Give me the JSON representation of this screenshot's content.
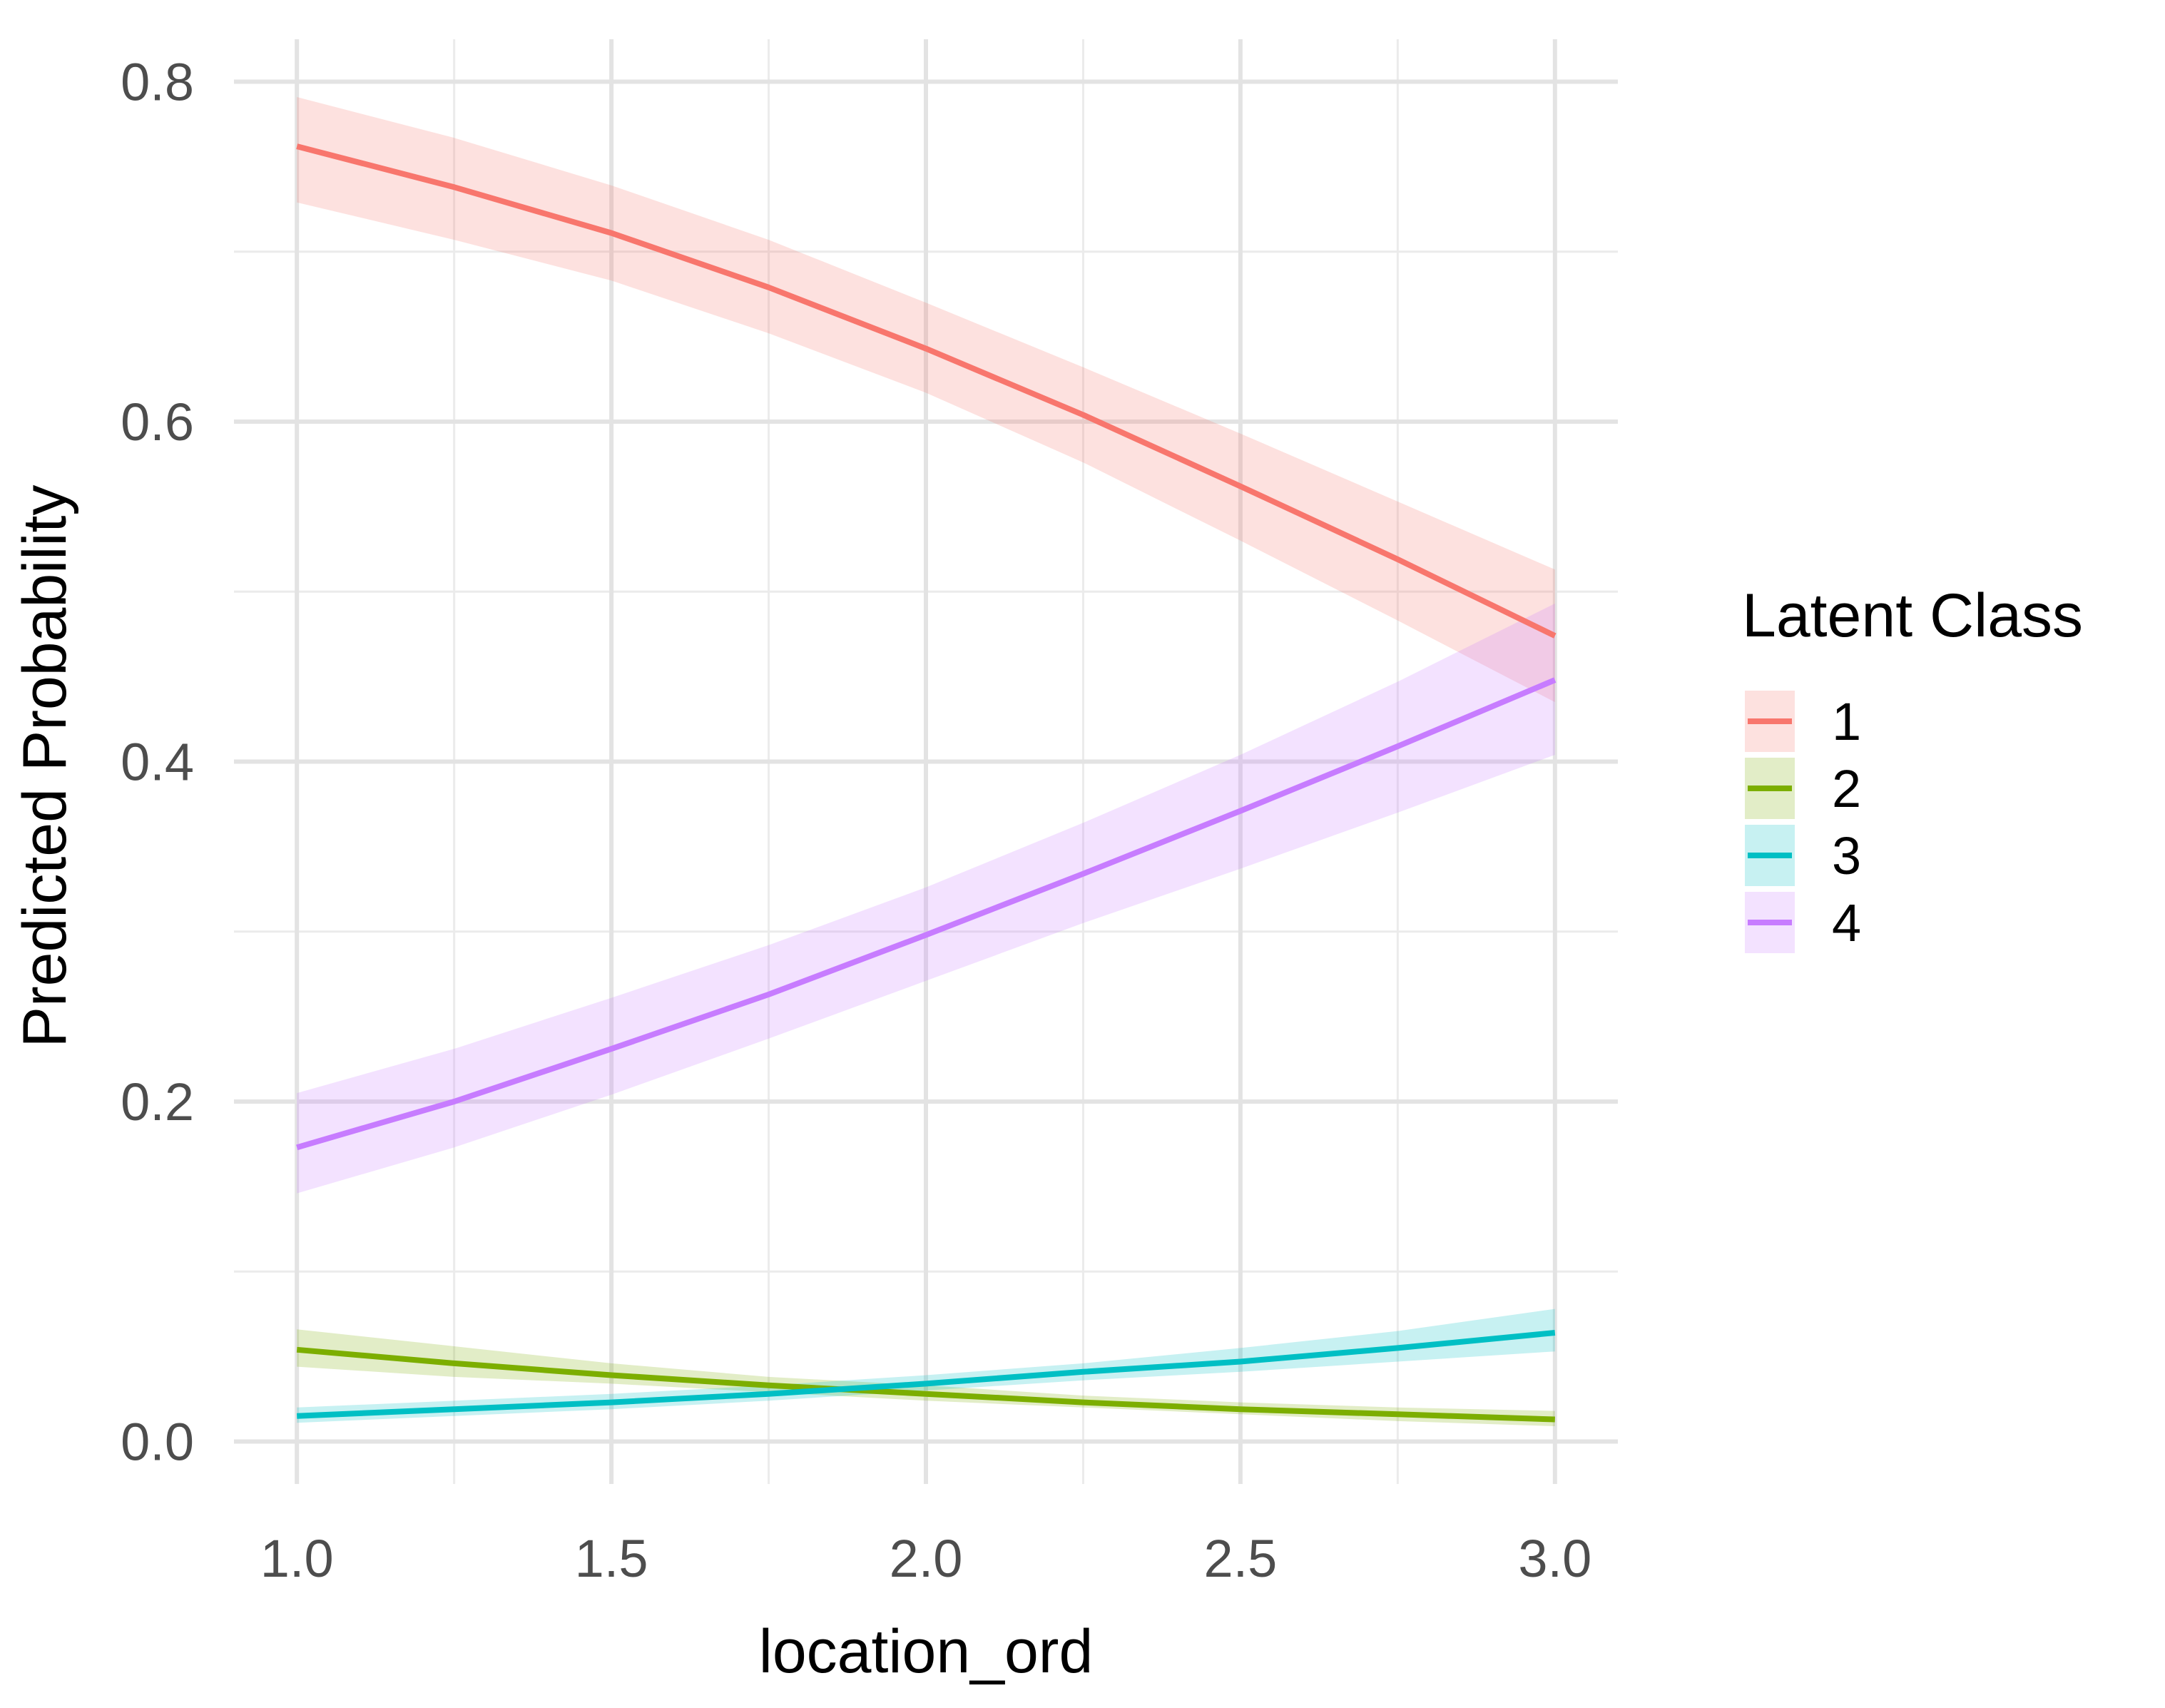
{
  "chart_data": {
    "type": "line",
    "title": "",
    "xlabel": "location_ord",
    "ylabel": "Predicted Probability",
    "xlim": [
      0.9,
      3.1
    ],
    "ylim": [
      -0.025,
      0.825
    ],
    "x_ticks": [
      1.0,
      1.5,
      2.0,
      2.5,
      3.0
    ],
    "x_tick_labels": [
      "1.0",
      "1.5",
      "2.0",
      "2.5",
      "3.0"
    ],
    "y_ticks": [
      0.0,
      0.2,
      0.4,
      0.6,
      0.8
    ],
    "y_tick_labels": [
      "0.0",
      "0.2",
      "0.4",
      "0.6",
      "0.8"
    ],
    "grid": true,
    "legend": {
      "title": "Latent Class",
      "placement": "right",
      "entries": [
        "1",
        "2",
        "3",
        "4"
      ]
    },
    "x": [
      1.0,
      1.25,
      1.5,
      1.75,
      2.0,
      2.25,
      2.5,
      2.75,
      3.0
    ],
    "series": [
      {
        "name": "1",
        "color": "#F8766D",
        "values": [
          0.762,
          0.738,
          0.711,
          0.679,
          0.643,
          0.604,
          0.562,
          0.519,
          0.474
        ],
        "lower": [
          0.729,
          0.707,
          0.683,
          0.652,
          0.617,
          0.576,
          0.53,
          0.483,
          0.435
        ],
        "upper": [
          0.791,
          0.767,
          0.739,
          0.707,
          0.67,
          0.632,
          0.593,
          0.553,
          0.513
        ]
      },
      {
        "name": "2",
        "color": "#7CAE00",
        "values": [
          0.054,
          0.046,
          0.039,
          0.033,
          0.028,
          0.023,
          0.019,
          0.016,
          0.013
        ],
        "lower": [
          0.044,
          0.038,
          0.034,
          0.029,
          0.024,
          0.02,
          0.016,
          0.012,
          0.009
        ],
        "upper": [
          0.066,
          0.056,
          0.046,
          0.038,
          0.033,
          0.027,
          0.023,
          0.02,
          0.018
        ]
      },
      {
        "name": "3",
        "color": "#00BFC4",
        "values": [
          0.015,
          0.019,
          0.023,
          0.028,
          0.034,
          0.041,
          0.047,
          0.055,
          0.064
        ],
        "lower": [
          0.011,
          0.015,
          0.019,
          0.024,
          0.03,
          0.036,
          0.041,
          0.047,
          0.053
        ],
        "upper": [
          0.02,
          0.024,
          0.028,
          0.033,
          0.039,
          0.046,
          0.055,
          0.065,
          0.078
        ]
      },
      {
        "name": "4",
        "color": "#C77CFF",
        "values": [
          0.173,
          0.2,
          0.231,
          0.263,
          0.298,
          0.334,
          0.371,
          0.409,
          0.448
        ],
        "lower": [
          0.146,
          0.173,
          0.204,
          0.237,
          0.271,
          0.305,
          0.337,
          0.37,
          0.404
        ],
        "upper": [
          0.205,
          0.231,
          0.261,
          0.292,
          0.326,
          0.364,
          0.404,
          0.447,
          0.493
        ]
      }
    ]
  }
}
